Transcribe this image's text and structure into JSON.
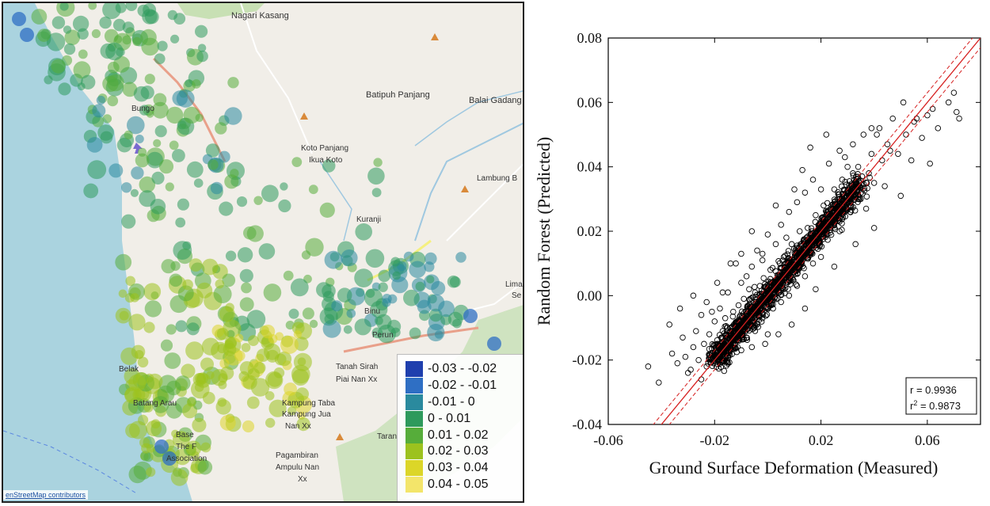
{
  "map": {
    "places": [
      {
        "label": "Nagari Kasang"
      },
      {
        "label": "Batipuh Panjang"
      },
      {
        "label": "Balai Gadang"
      },
      {
        "label": "Koto Panjang"
      },
      {
        "label": "Ikua Koto"
      },
      {
        "label": "Lambung B"
      },
      {
        "label": "Kuranji"
      },
      {
        "label": "Lima"
      },
      {
        "label": "Se"
      },
      {
        "label": "Binu"
      },
      {
        "label": "Perun"
      },
      {
        "label": "Tanah Sirah"
      },
      {
        "label": "Piai Nan Xx"
      },
      {
        "label": "Belak"
      },
      {
        "label": "Batang Arau"
      },
      {
        "label": "Base"
      },
      {
        "label": "The F"
      },
      {
        "label": "Association"
      },
      {
        "label": "Kampung Taba"
      },
      {
        "label": "Kampung Jua"
      },
      {
        "label": "Nan Xx"
      },
      {
        "label": "Pagambiran"
      },
      {
        "label": "Ampulu Nan"
      },
      {
        "label": "Xx"
      },
      {
        "label": "Taran"
      },
      {
        "label": "Bungo"
      }
    ],
    "attribution": "enStreetMap contributors",
    "legend": [
      {
        "label": "-0.03 - -0.02",
        "color": "#1f3fae"
      },
      {
        "label": "-0.02 - -0.01",
        "color": "#2f6fc4"
      },
      {
        "label": "-0.01 - 0",
        "color": "#2a8a9e"
      },
      {
        "label": "0 - 0.01",
        "color": "#2e9a5c"
      },
      {
        "label": "0.01 - 0.02",
        "color": "#56ad3a"
      },
      {
        "label": "0.02 - 0.03",
        "color": "#9cc21e"
      },
      {
        "label": "0.03 - 0.04",
        "color": "#dcd628"
      },
      {
        "label": "0.04 - 0.05",
        "color": "#f3e56a"
      }
    ]
  },
  "chart_data": {
    "type": "scatter",
    "title": "",
    "xlabel": "Ground Surface Deformation (Measured)",
    "ylabel": "Random Forest (Predicted)",
    "xlim": [
      -0.06,
      0.08
    ],
    "ylim": [
      -0.04,
      0.08
    ],
    "xticks": [
      "-0.06",
      "-0.02",
      "0.02",
      "0.06"
    ],
    "yticks": [
      "-0.04",
      "-0.02",
      "0.00",
      "0.02",
      "0.04",
      "0.06",
      "0.08"
    ],
    "stats": {
      "r": "r = 0.9936",
      "r2_prefix": "r",
      "r2_sup": "2",
      "r2_value": " = 0.9873"
    },
    "fit_line": {
      "slope": 1.0,
      "intercept": 0.0,
      "color": "#d62020"
    },
    "points": [
      [
        -0.045,
        -0.022
      ],
      [
        -0.041,
        -0.027
      ],
      [
        -0.036,
        -0.018
      ],
      [
        -0.034,
        -0.021
      ],
      [
        -0.032,
        -0.013
      ],
      [
        -0.031,
        -0.019
      ],
      [
        -0.03,
        -0.024
      ],
      [
        -0.028,
        -0.016
      ],
      [
        -0.027,
        -0.011
      ],
      [
        -0.026,
        -0.02
      ],
      [
        -0.025,
        -0.006
      ],
      [
        -0.024,
        -0.015
      ],
      [
        -0.023,
        -0.022
      ],
      [
        -0.022,
        -0.012
      ],
      [
        -0.021,
        -0.018
      ],
      [
        -0.02,
        -0.008
      ],
      [
        -0.02,
        -0.02
      ],
      [
        -0.019,
        -0.015
      ],
      [
        -0.018,
        -0.004
      ],
      [
        -0.018,
        -0.017
      ],
      [
        -0.017,
        -0.011
      ],
      [
        -0.016,
        -0.019
      ],
      [
        -0.016,
        -0.007
      ],
      [
        -0.015,
        -0.013
      ],
      [
        -0.015,
        0.001
      ],
      [
        -0.014,
        -0.016
      ],
      [
        -0.014,
        -0.01
      ],
      [
        -0.013,
        -0.005
      ],
      [
        -0.013,
        -0.014
      ],
      [
        -0.012,
        -0.009
      ],
      [
        -0.012,
        0.01
      ],
      [
        -0.011,
        -0.012
      ],
      [
        -0.011,
        -0.003
      ],
      [
        -0.01,
        -0.008
      ],
      [
        -0.01,
        0.004
      ],
      [
        -0.009,
        -0.011
      ],
      [
        -0.009,
        -0.001
      ],
      [
        -0.008,
        0.006
      ],
      [
        -0.008,
        -0.013
      ],
      [
        -0.007,
        0.002
      ],
      [
        -0.006,
        -0.016
      ],
      [
        -0.006,
        0.009
      ],
      [
        -0.005,
        -0.004
      ],
      [
        -0.004,
        0.014
      ],
      [
        -0.004,
        -0.009
      ],
      [
        -0.003,
        0.003
      ],
      [
        -0.002,
        -0.007
      ],
      [
        -0.002,
        0.011
      ],
      [
        0.0,
        0.019
      ],
      [
        0.0,
        -0.012
      ],
      [
        0.001,
        0.008
      ],
      [
        0.002,
        -0.004
      ],
      [
        0.003,
        0.016
      ],
      [
        0.004,
        0.001
      ],
      [
        0.005,
        0.022
      ],
      [
        0.005,
        -0.002
      ],
      [
        0.006,
        0.012
      ],
      [
        0.007,
        0.005
      ],
      [
        0.008,
        0.026
      ],
      [
        0.008,
        0.0
      ],
      [
        0.009,
        0.016
      ],
      [
        0.01,
        0.008
      ],
      [
        0.011,
        0.029
      ],
      [
        0.011,
        0.003
      ],
      [
        0.012,
        0.02
      ],
      [
        0.013,
        0.011
      ],
      [
        0.014,
        0.032
      ],
      [
        0.014,
        0.006
      ],
      [
        0.015,
        0.021
      ],
      [
        0.016,
        0.014
      ],
      [
        0.017,
        0.036
      ],
      [
        0.017,
        0.01
      ],
      [
        0.018,
        0.025
      ],
      [
        0.019,
        0.016
      ],
      [
        0.02,
        0.033
      ],
      [
        0.02,
        0.012
      ],
      [
        0.021,
        0.028
      ],
      [
        0.022,
        0.019
      ],
      [
        0.023,
        0.041
      ],
      [
        0.024,
        0.022
      ],
      [
        0.025,
        0.033
      ],
      [
        0.026,
        0.026
      ],
      [
        0.027,
        0.045
      ],
      [
        0.027,
        0.02
      ],
      [
        0.028,
        0.036
      ],
      [
        0.029,
        0.029
      ],
      [
        0.03,
        0.04
      ],
      [
        0.031,
        0.026
      ],
      [
        0.032,
        0.047
      ],
      [
        0.033,
        0.035
      ],
      [
        0.034,
        0.04
      ],
      [
        0.035,
        0.03
      ],
      [
        0.036,
        0.05
      ],
      [
        0.038,
        0.038
      ],
      [
        0.039,
        0.044
      ],
      [
        0.04,
        0.035
      ],
      [
        0.042,
        0.052
      ],
      [
        0.043,
        0.042
      ],
      [
        0.045,
        0.047
      ],
      [
        0.047,
        0.055
      ],
      [
        0.049,
        0.044
      ],
      [
        0.052,
        0.05
      ],
      [
        0.055,
        0.054
      ],
      [
        0.058,
        0.049
      ],
      [
        0.062,
        0.058
      ],
      [
        0.064,
        0.052
      ],
      [
        0.068,
        0.06
      ],
      [
        0.07,
        0.063
      ],
      [
        0.071,
        0.057
      ],
      [
        0.072,
        0.055
      ],
      [
        0.061,
        0.041
      ],
      [
        0.05,
        0.031
      ],
      [
        0.044,
        0.034
      ],
      [
        0.037,
        0.027
      ],
      [
        0.04,
        0.021
      ],
      [
        0.033,
        0.016
      ],
      [
        0.025,
        0.009
      ],
      [
        0.018,
        0.002
      ],
      [
        0.014,
        -0.004
      ],
      [
        0.009,
        -0.009
      ],
      [
        0.004,
        -0.012
      ],
      [
        -0.001,
        -0.015
      ],
      [
        -0.01,
        0.013
      ],
      [
        -0.014,
        0.01
      ],
      [
        -0.019,
        0.004
      ],
      [
        -0.023,
        -0.002
      ],
      [
        -0.028,
        0.0
      ],
      [
        -0.006,
        0.02
      ],
      [
        0.003,
        0.028
      ],
      [
        0.013,
        0.039
      ],
      [
        0.016,
        0.046
      ],
      [
        0.022,
        0.05
      ],
      [
        0.06,
        0.056
      ],
      [
        0.056,
        0.055
      ],
      [
        0.054,
        0.042
      ],
      [
        0.046,
        0.045
      ],
      [
        0.041,
        0.05
      ],
      [
        0.032,
        0.038
      ],
      [
        -0.037,
        -0.009
      ],
      [
        -0.033,
        -0.004
      ],
      [
        -0.029,
        -0.023
      ],
      [
        -0.025,
        -0.026
      ],
      [
        0.051,
        0.06
      ],
      [
        0.039,
        0.052
      ],
      [
        0.029,
        0.043
      ],
      [
        0.01,
        0.033
      ],
      [
        0.007,
        0.018
      ],
      [
        -0.002,
        0.013
      ],
      [
        -0.017,
        0.001
      ],
      [
        -0.021,
        -0.005
      ]
    ]
  }
}
